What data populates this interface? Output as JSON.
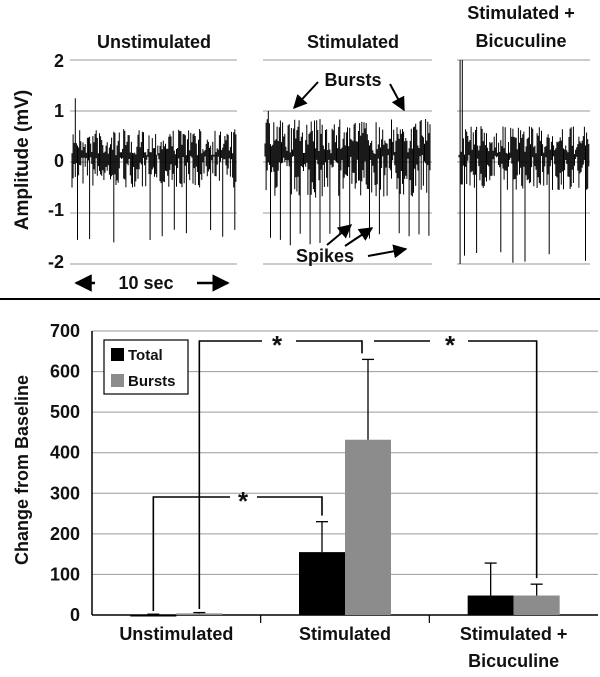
{
  "figure": {
    "top_panel": {
      "ylabel": "Amplitude (mV)",
      "yticks": [
        "2",
        "1",
        "0",
        "-1",
        "-2"
      ],
      "titles": [
        "Unstimulated",
        "Stimulated",
        "Stimulated +",
        "Bicuculine"
      ],
      "annotations": {
        "bursts": "Bursts",
        "spikes": "Spikes",
        "time_scale": "10 sec"
      }
    }
  },
  "chart_data": [
    {
      "type": "line",
      "title": "",
      "xlabel": "10 sec",
      "ylabel": "Amplitude (mV)",
      "ylim": [
        -2,
        2
      ],
      "yticks": [
        -2,
        -1,
        0,
        1,
        2
      ],
      "grid": true,
      "panels": [
        {
          "name": "Unstimulated",
          "noise_band_mV": [
            -0.5,
            0.65
          ],
          "spike_min_mV": -1.6,
          "max_mV": 1.25
        },
        {
          "name": "Stimulated",
          "noise_band_mV": [
            -0.7,
            0.85
          ],
          "spike_min_mV": -1.65,
          "max_mV": 1.0
        },
        {
          "name": "Stimulated + Bicuculine",
          "noise_band_mV": [
            -0.55,
            0.7
          ],
          "spike_min_mV": -2.0,
          "max_mV": 2.0
        }
      ]
    },
    {
      "type": "bar",
      "title": "",
      "xlabel": "",
      "ylabel": "Change from Baseline",
      "categories": [
        "Unstimulated",
        "Stimulated",
        "Stimulated + Bicuculine"
      ],
      "category_labels": [
        [
          "Unstimulated"
        ],
        [
          "Stimulated"
        ],
        [
          "Stimulated +",
          "Bicuculine"
        ]
      ],
      "ylim": [
        0,
        700
      ],
      "yticks": [
        0,
        100,
        200,
        300,
        400,
        500,
        600,
        700
      ],
      "grid": true,
      "legend": "top-left",
      "series": [
        {
          "name": "Total",
          "values": [
            -2,
            155,
            48
          ],
          "errors": [
            2,
            75,
            80
          ],
          "color": "#000000"
        },
        {
          "name": "Bursts",
          "values": [
            4,
            432,
            48
          ],
          "errors": [
            2,
            198,
            28
          ],
          "color": "#8c8c8c"
        }
      ],
      "significance": [
        {
          "label": "*",
          "from": "Unstimulated",
          "to": "Stimulated"
        },
        {
          "label": "*",
          "from": "Unstimulated",
          "to": "Stimulated"
        },
        {
          "label": "*",
          "from": "Stimulated",
          "to": "Stimulated + Bicuculine"
        }
      ]
    }
  ]
}
